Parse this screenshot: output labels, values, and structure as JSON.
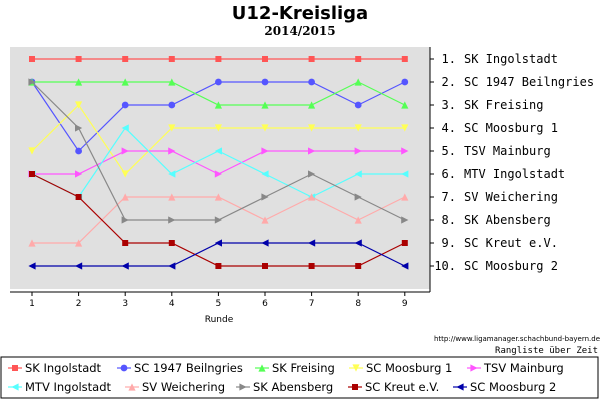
{
  "title": "U12-Kreisliga",
  "subtitle": "2014/2015",
  "credit": "http://www.ligamanager.schachbund-bayern.de",
  "credit2": "Rangliste über Zeit",
  "chart_data": {
    "type": "line",
    "title": "U12-Kreisliga",
    "subtitle": "2014/2015",
    "xlabel": "Runde",
    "ylabel": "",
    "x": [
      1,
      2,
      3,
      4,
      5,
      6,
      7,
      8,
      9
    ],
    "ylim": [
      1,
      10
    ],
    "y_inverted": true,
    "grid": false,
    "legend_position": "bottom",
    "right_axis_labels": [
      "1. SK Ingolstadt",
      "2. SC 1947 Beilngries",
      "3. SK Freising",
      "4. SC Moosburg 1",
      "5. TSV Mainburg",
      "6. MTV Ingolstadt",
      "7. SV Weichering",
      "8. SK Abensberg",
      "9. SC Kreut e.V.",
      "10. SC Moosburg 2"
    ],
    "series": [
      {
        "name": "SK Ingolstadt",
        "color": "#ff5555",
        "marker": "square",
        "values": [
          1,
          1,
          1,
          1,
          1,
          1,
          1,
          1,
          1
        ]
      },
      {
        "name": "SC 1947 Beilngries",
        "color": "#5555ff",
        "marker": "circle",
        "values": [
          2,
          5,
          3,
          3,
          2,
          2,
          2,
          3,
          2
        ]
      },
      {
        "name": "SK Freising",
        "color": "#55ff55",
        "marker": "triangle-up",
        "values": [
          2,
          2,
          2,
          2,
          3,
          3,
          3,
          2,
          3
        ]
      },
      {
        "name": "SC Moosburg 1",
        "color": "#ffff55",
        "marker": "triangle-down",
        "values": [
          5,
          3,
          6,
          4,
          4,
          4,
          4,
          4,
          4
        ]
      },
      {
        "name": "TSV Mainburg",
        "color": "#ff55ff",
        "marker": "triangle-right",
        "values": [
          6,
          6,
          5,
          5,
          6,
          5,
          5,
          5,
          5
        ]
      },
      {
        "name": "MTV Ingolstadt",
        "color": "#55ffff",
        "marker": "triangle-left",
        "values": [
          6,
          7,
          4,
          6,
          5,
          6,
          7,
          6,
          6
        ]
      },
      {
        "name": "SV Weichering",
        "color": "#ffaaaa",
        "marker": "triangle-up",
        "values": [
          9,
          9,
          7,
          7,
          7,
          8,
          7,
          8,
          7
        ]
      },
      {
        "name": "SK Abensberg",
        "color": "#888888",
        "marker": "triangle-right",
        "values": [
          2,
          4,
          8,
          8,
          8,
          7,
          6,
          7,
          8
        ]
      },
      {
        "name": "SC Kreut e.V.",
        "color": "#aa0000",
        "marker": "square",
        "values": [
          6,
          7,
          9,
          9,
          10,
          10,
          10,
          10,
          9
        ]
      },
      {
        "name": "SC Moosburg 2",
        "color": "#0000aa",
        "marker": "triangle-left",
        "values": [
          10,
          10,
          10,
          10,
          9,
          9,
          9,
          9,
          10
        ]
      }
    ]
  }
}
